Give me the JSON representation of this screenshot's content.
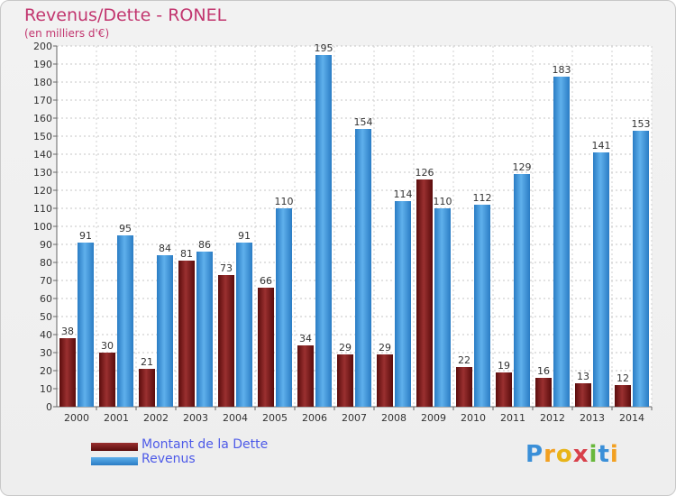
{
  "header": {
    "title": "Revenus/Dette - RONEL",
    "subtitle": "(en milliers d'€)"
  },
  "legend": {
    "items": [
      {
        "label": "Montant de la Dette"
      },
      {
        "label": "Revenus"
      }
    ]
  },
  "logo": {
    "letters": [
      "P",
      "r",
      "o",
      "x",
      "i",
      "t",
      "i"
    ],
    "colors": [
      "#3a8fd8",
      "#f2a021",
      "#e8b418",
      "#d8404a",
      "#68b83c",
      "#3a8fd8",
      "#f2a021"
    ]
  },
  "colors": {
    "debt": "#7a1c1c",
    "revenue": "#3b94d9"
  },
  "chart_data": {
    "type": "bar",
    "title": "Revenus/Dette - RONEL",
    "subtitle": "(en milliers d'€)",
    "categories": [
      "2000",
      "2001",
      "2002",
      "2003",
      "2004",
      "2005",
      "2006",
      "2007",
      "2008",
      "2009",
      "2010",
      "2011",
      "2012",
      "2013",
      "2014"
    ],
    "series": [
      {
        "name": "Montant de la Dette",
        "values": [
          38,
          30,
          21,
          81,
          73,
          66,
          34,
          29,
          29,
          126,
          22,
          19,
          16,
          13,
          12
        ]
      },
      {
        "name": "Revenus",
        "values": [
          91,
          95,
          84,
          86,
          91,
          110,
          195,
          154,
          114,
          110,
          112,
          129,
          183,
          141,
          153
        ]
      }
    ],
    "ylim": [
      0,
      200
    ],
    "yticks": [
      0,
      10,
      20,
      30,
      40,
      50,
      60,
      70,
      80,
      90,
      100,
      110,
      120,
      130,
      140,
      150,
      160,
      170,
      180,
      190,
      200
    ],
    "grid": true,
    "legend": "bottom-left"
  }
}
